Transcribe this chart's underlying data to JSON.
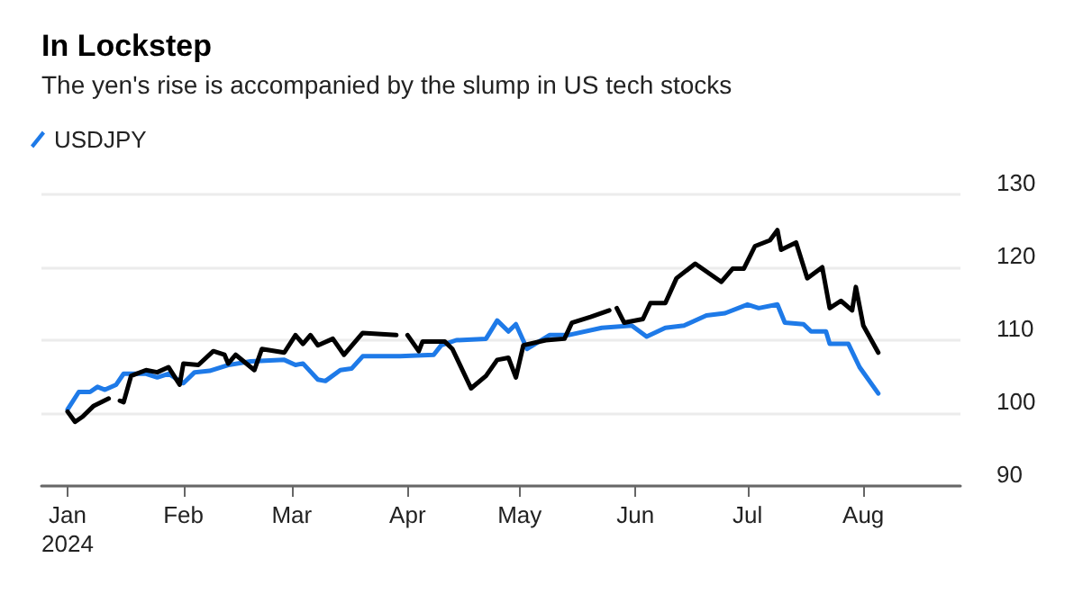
{
  "chart_data": {
    "type": "line",
    "title": "In Lockstep",
    "subtitle": "The yen's rise is accompanied by the slump in US tech stocks",
    "xlim": [
      "2023-12-25",
      "2024-08-27"
    ],
    "xticks": [
      {
        "value": "2024-01-01",
        "label": "Jan\n2024"
      },
      {
        "value": "2024-02-01",
        "label": "Feb"
      },
      {
        "value": "2024-03-01",
        "label": "Mar"
      },
      {
        "value": "2024-04-01",
        "label": "Apr"
      },
      {
        "value": "2024-05-01",
        "label": "May"
      },
      {
        "value": "2024-06-01",
        "label": "Jun"
      },
      {
        "value": "2024-07-01",
        "label": "Jul"
      },
      {
        "value": "2024-08-01",
        "label": "Aug"
      }
    ],
    "ylim": [
      90,
      130
    ],
    "yticks": [
      90,
      100,
      110,
      120,
      130
    ],
    "grid": "y",
    "legend": "top left",
    "marker": "none",
    "line_style": "solid",
    "series": [
      {
        "name": "USDJPY",
        "color": "#1e7ae8",
        "x": [
          "2024-01-01",
          "2024-01-04",
          "2024-01-07",
          "2024-01-09",
          "2024-01-11",
          "2024-01-14",
          "2024-01-16",
          "2024-01-22",
          "2024-01-25",
          "2024-01-28",
          "2024-02-01",
          "2024-02-04",
          "2024-02-08",
          "2024-02-13",
          "2024-02-19",
          "2024-02-28",
          "2024-03-02",
          "2024-03-04",
          "2024-03-08",
          "2024-03-10",
          "2024-03-14",
          "2024-03-17",
          "2024-03-20",
          "2024-03-30",
          "2024-04-08",
          "2024-04-10",
          "2024-04-14",
          "2024-04-22",
          "2024-04-25",
          "2024-04-28",
          "2024-04-30",
          "2024-05-03",
          "2024-05-09",
          "2024-05-14",
          "2024-05-23",
          "2024-05-31",
          "2024-06-04",
          "2024-06-09",
          "2024-06-14",
          "2024-06-20",
          "2024-06-25",
          "2024-07-01",
          "2024-07-04",
          "2024-07-09",
          "2024-07-11",
          "2024-07-16",
          "2024-07-18",
          "2024-07-22",
          "2024-07-23",
          "2024-07-28",
          "2024-07-31",
          "2024-08-05"
        ],
        "values": [
          100.5,
          102.9,
          102.9,
          103.6,
          103.2,
          103.9,
          105.4,
          105.4,
          104.9,
          105.4,
          104.1,
          105.6,
          105.8,
          106.6,
          107.1,
          107.3,
          106.6,
          106.8,
          104.6,
          104.4,
          105.9,
          106.1,
          107.8,
          107.8,
          108.0,
          109.3,
          110.0,
          110.2,
          112.7,
          111.2,
          112.2,
          108.8,
          110.7,
          110.7,
          111.7,
          112.0,
          110.5,
          111.7,
          112.0,
          113.4,
          113.7,
          114.9,
          114.4,
          114.9,
          112.4,
          112.2,
          111.2,
          111.2,
          109.5,
          109.5,
          106.3,
          102.7
        ]
      },
      {
        "color": "#000000",
        "x": [
          "2024-01-01",
          "2024-01-03",
          "2024-01-05",
          "2024-01-08",
          "2024-01-12",
          "2024-01-13",
          "2024-01-15",
          "2024-01-16",
          "2024-01-18",
          "2024-01-22",
          "2024-01-25",
          "2024-01-28",
          "2024-01-31",
          "2024-02-01",
          "2024-02-05",
          "2024-02-09",
          "2024-02-12",
          "2024-02-13",
          "2024-02-15",
          "2024-02-20",
          "2024-02-22",
          "2024-02-28",
          "2024-03-02",
          "2024-03-04",
          "2024-03-06",
          "2024-03-08",
          "2024-03-12",
          "2024-03-15",
          "2024-03-20",
          "2024-03-29",
          "2024-03-30",
          "2024-04-01",
          "2024-04-04",
          "2024-04-05",
          "2024-04-11",
          "2024-04-13",
          "2024-04-18",
          "2024-04-22",
          "2024-04-25",
          "2024-04-28",
          "2024-04-30",
          "2024-05-02",
          "2024-05-08",
          "2024-05-13",
          "2024-05-15",
          "2024-05-20",
          "2024-05-25",
          "2024-05-26",
          "2024-05-27",
          "2024-05-29",
          "2024-06-03",
          "2024-06-05",
          "2024-06-09",
          "2024-06-12",
          "2024-06-17",
          "2024-06-24",
          "2024-06-27",
          "2024-06-30",
          "2024-07-03",
          "2024-07-07",
          "2024-07-09",
          "2024-07-10",
          "2024-07-14",
          "2024-07-17",
          "2024-07-21",
          "2024-07-23",
          "2024-07-26",
          "2024-07-29",
          "2024-07-30",
          "2024-08-01",
          "2024-08-05"
        ],
        "values": [
          100.2,
          98.8,
          99.5,
          101.0,
          102.0,
          null,
          101.7,
          101.5,
          105.1,
          105.9,
          105.6,
          106.3,
          103.9,
          106.8,
          106.6,
          108.5,
          108.0,
          106.8,
          108.0,
          105.9,
          108.8,
          108.3,
          110.7,
          109.5,
          110.7,
          109.3,
          110.2,
          108.0,
          111.0,
          110.7,
          null,
          110.7,
          108.5,
          109.8,
          109.8,
          108.8,
          103.4,
          105.1,
          107.3,
          107.6,
          104.9,
          109.3,
          110.0,
          110.2,
          112.4,
          113.2,
          114.1,
          null,
          114.4,
          112.4,
          112.9,
          115.1,
          115.1,
          118.5,
          120.5,
          118.0,
          119.8,
          119.8,
          122.9,
          123.7,
          125.1,
          122.4,
          123.4,
          118.5,
          120.0,
          114.4,
          115.4,
          114.1,
          117.3,
          112.0,
          108.3
        ]
      }
    ]
  }
}
